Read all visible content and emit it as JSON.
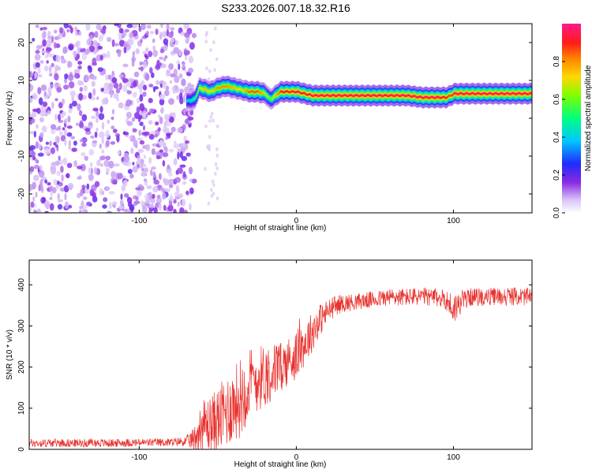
{
  "title": "S233.2026.007.18.32.R16",
  "colors": {
    "snr_line": "#e8322e",
    "axis": "#000000",
    "scatter_purple": "#7a1fe0",
    "scatter_light": "#c9a7f5"
  },
  "chart_data": [
    {
      "type": "heatmap",
      "title": "S233.2026.007.18.32.R16",
      "xlabel": "Height of straight line (km)",
      "ylabel": "Frequency (Hz)",
      "xlim": [
        -170,
        150
      ],
      "ylim": [
        -25,
        25
      ],
      "xticks": [
        -100,
        0,
        100
      ],
      "yticks": [
        -20,
        -10,
        0,
        10,
        20
      ],
      "colorbar": {
        "label": "Normalized spectral amplitude",
        "range": [
          0,
          1
        ],
        "ticks": [
          0.0,
          0.2,
          0.4,
          0.6,
          0.8
        ],
        "tick_labels": [
          "0.0",
          "0.2",
          "0.4",
          "0.6",
          "0.8"
        ],
        "colormap": "rainbow (white-lavender-purple-blue-cyan-green-yellow-orange-red-magenta)"
      },
      "noise_region": {
        "x": [
          -170,
          -65
        ],
        "y": [
          -25,
          25
        ],
        "level": "0.05-0.3"
      },
      "ridge": {
        "x": [
          -70,
          -65,
          -62,
          -58,
          -55,
          -50,
          -45,
          -40,
          -35,
          -30,
          -25,
          -20,
          -17,
          -15,
          -12,
          -10,
          -5,
          0,
          5,
          10,
          20,
          30,
          40,
          50,
          60,
          70,
          80,
          90,
          95,
          98,
          100,
          110,
          120,
          130,
          140,
          150
        ],
        "y": [
          4.5,
          5,
          8,
          7.5,
          7,
          8,
          8.5,
          8,
          7.5,
          7,
          7,
          6.5,
          5,
          5.5,
          6.5,
          7,
          7,
          7,
          6.5,
          6,
          6,
          6,
          6,
          6,
          6,
          6,
          5.5,
          5.5,
          5.5,
          6,
          6.5,
          6.5,
          6.5,
          6.5,
          6.5,
          6.5
        ],
        "amplitude": [
          0.4,
          0.5,
          0.7,
          0.75,
          0.7,
          0.8,
          0.8,
          0.75,
          0.7,
          0.85,
          0.85,
          0.7,
          0.6,
          0.7,
          0.8,
          0.9,
          0.9,
          0.95,
          0.9,
          0.95,
          0.95,
          0.95,
          0.95,
          0.95,
          0.95,
          0.95,
          0.95,
          0.95,
          0.9,
          0.85,
          0.95,
          0.95,
          0.95,
          0.95,
          0.95,
          0.95
        ]
      }
    },
    {
      "type": "line",
      "xlabel": "Height of straight line (km)",
      "ylabel": "SNR (10 * v/v)",
      "xlim": [
        -170,
        150
      ],
      "ylim": [
        0,
        460
      ],
      "xticks": [
        -100,
        0,
        100
      ],
      "yticks": [
        0,
        100,
        200,
        300,
        400
      ],
      "series": [
        {
          "x": [
            -170,
            -160,
            -150,
            -140,
            -130,
            -120,
            -110,
            -100,
            -90,
            -80,
            -70,
            -65,
            -60,
            -55,
            -50,
            -45,
            -40,
            -35,
            -30,
            -25,
            -20,
            -15,
            -10,
            -5,
            0,
            5,
            10,
            15,
            20,
            25,
            30,
            40,
            50,
            60,
            70,
            80,
            90,
            95,
            100,
            105,
            110,
            120,
            130,
            140,
            150
          ],
          "values": [
            15,
            15,
            16,
            15,
            16,
            15,
            16,
            16,
            17,
            17,
            20,
            25,
            60,
            60,
            70,
            90,
            110,
            130,
            160,
            170,
            180,
            190,
            200,
            215,
            230,
            255,
            285,
            315,
            335,
            350,
            355,
            360,
            365,
            370,
            370,
            372,
            368,
            365,
            340,
            360,
            370,
            370,
            372,
            372,
            370
          ],
          "noise_amp": [
            10,
            10,
            10,
            10,
            10,
            10,
            10,
            10,
            10,
            10,
            12,
            30,
            60,
            70,
            80,
            90,
            90,
            100,
            90,
            80,
            80,
            70,
            60,
            60,
            60,
            55,
            50,
            40,
            30,
            25,
            22,
            20,
            20,
            22,
            22,
            22,
            22,
            25,
            40,
            28,
            22,
            22,
            22,
            22,
            22
          ]
        }
      ]
    }
  ]
}
